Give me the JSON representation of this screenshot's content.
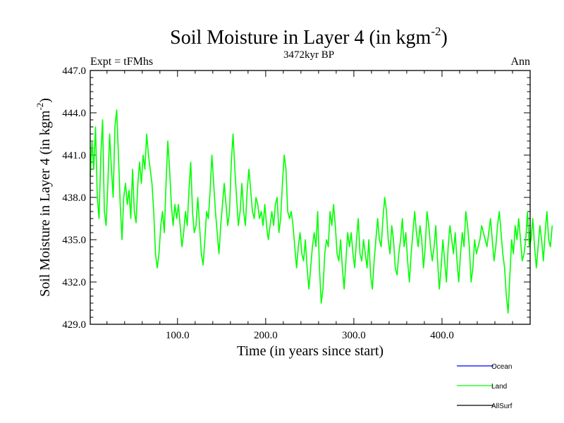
{
  "chart_data": {
    "type": "line",
    "title": "Soil Moisture in Layer 4 (in kgm",
    "title_superscript": "-2",
    "title_close": ")",
    "subtitle": "3472kyr BP",
    "left_label": "Expt = tFMhs",
    "right_label": "Ann",
    "xlabel": "Time (in years since start)",
    "ylabel": "Soil Moisture in Layer 4 (in kgm",
    "ylabel_superscript": "-2",
    "ylabel_close": ")",
    "xlim": [
      1,
      500
    ],
    "ylim": [
      429.0,
      447.0
    ],
    "x_ticks": [
      100,
      200,
      300,
      400
    ],
    "x_tick_labels": [
      "100.0",
      "200.0",
      "300.0",
      "400.0"
    ],
    "y_ticks": [
      429,
      432,
      435,
      438,
      441,
      444,
      447
    ],
    "y_tick_labels": [
      "429.0",
      "432.0",
      "435.0",
      "438.0",
      "441.0",
      "444.0",
      "447.0"
    ],
    "legend": [
      {
        "name": "Ocean",
        "color": "#0000ff"
      },
      {
        "name": "Land",
        "color": "#00ff00"
      },
      {
        "name": "AllSurf",
        "color": "#000000"
      }
    ],
    "series": [
      {
        "name": "Land",
        "color": "#00ff00",
        "x_start": 1,
        "x_step": 2,
        "values": [
          439.5,
          442.0,
          440.0,
          443.0,
          438.0,
          436.5,
          441.0,
          443.5,
          437.0,
          436.0,
          439.0,
          442.5,
          440.0,
          438.0,
          443.0,
          444.2,
          441.0,
          437.5,
          435.0,
          438.0,
          439.0,
          437.5,
          438.5,
          436.5,
          440.0,
          437.0,
          436.2,
          439.0,
          440.5,
          439.0,
          441.0,
          440.0,
          442.5,
          441.0,
          440.0,
          439.0,
          437.0,
          434.0,
          433.0,
          434.0,
          436.0,
          437.0,
          435.5,
          439.0,
          442.0,
          440.0,
          437.5,
          436.0,
          437.5,
          436.5,
          437.5,
          436.0,
          434.5,
          435.5,
          437.0,
          436.0,
          438.5,
          440.5,
          437.0,
          435.5,
          436.0,
          438.0,
          436.0,
          434.0,
          433.2,
          435.0,
          437.0,
          436.5,
          438.5,
          441.0,
          439.0,
          437.0,
          435.5,
          434.0,
          436.0,
          437.5,
          439.0,
          437.5,
          436.0,
          437.0,
          440.5,
          442.5,
          440.0,
          438.0,
          436.0,
          437.0,
          439.0,
          437.0,
          436.0,
          438.5,
          440.0,
          438.5,
          437.0,
          436.5,
          438.0,
          437.5,
          436.5,
          437.0,
          436.0,
          437.5,
          436.0,
          435.0,
          436.0,
          437.0,
          436.0,
          437.5,
          438.0,
          435.5,
          436.5,
          439.0,
          441.0,
          440.0,
          437.0,
          436.5,
          437.0,
          436.0,
          434.5,
          433.0,
          434.5,
          435.5,
          434.0,
          433.5,
          435.0,
          433.0,
          431.5,
          433.0,
          434.5,
          435.5,
          434.5,
          437.0,
          433.0,
          430.5,
          431.5,
          434.0,
          435.0,
          434.5,
          437.0,
          436.0,
          437.5,
          436.0,
          434.0,
          433.5,
          435.0,
          433.0,
          431.5,
          433.5,
          435.5,
          434.5,
          435.5,
          434.0,
          433.0,
          435.0,
          436.5,
          434.0,
          433.5,
          435.0,
          434.0,
          433.0,
          435.0,
          432.5,
          431.5,
          433.5,
          435.0,
          436.5,
          435.0,
          434.5,
          436.5,
          438.0,
          437.0,
          435.0,
          434.0,
          436.0,
          435.0,
          433.0,
          432.5,
          434.0,
          435.0,
          436.5,
          434.5,
          435.5,
          433.5,
          432.0,
          434.0,
          435.5,
          437.0,
          435.5,
          434.5,
          436.0,
          435.0,
          433.0,
          434.5,
          437.0,
          436.0,
          434.5,
          433.5,
          434.5,
          436.0,
          433.5,
          431.5,
          433.0,
          435.0,
          433.5,
          432.0,
          434.5,
          436.0,
          435.0,
          434.0,
          435.5,
          433.5,
          432.0,
          434.0,
          435.5,
          434.5,
          437.0,
          436.0,
          434.5,
          432.0,
          433.0,
          435.0,
          434.0,
          434.5,
          435.0,
          436.0,
          435.5,
          435.0,
          434.5,
          435.5,
          436.5,
          435.0,
          433.5,
          434.5,
          436.0,
          437.0,
          435.5,
          434.0,
          433.0,
          431.0,
          429.8,
          432.5,
          435.0,
          434.0,
          436.0,
          435.0,
          436.5,
          435.0,
          433.5,
          434.0,
          435.0,
          437.0,
          434.5,
          435.0,
          436.5,
          434.5,
          433.0,
          434.5,
          436.0,
          435.0,
          433.5,
          435.5,
          437.0,
          435.0,
          434.5,
          436.0
        ]
      }
    ]
  }
}
